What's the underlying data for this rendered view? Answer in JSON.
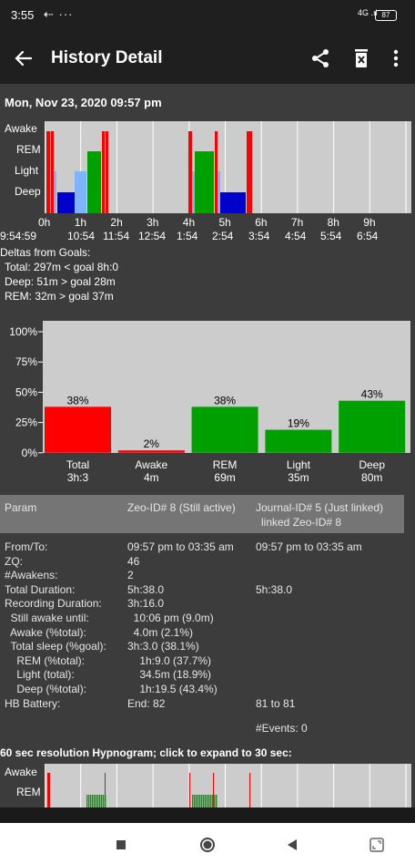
{
  "status": {
    "time": "3:55",
    "notif": "⇠ ···",
    "signal": "4G .ıl",
    "battery": "87"
  },
  "appbar": {
    "title": "History Detail"
  },
  "date": "Mon, Nov 23, 2020 09:57 pm",
  "hypnogram": {
    "stage_labels": [
      "Awake",
      "REM",
      "Light",
      "Deep"
    ],
    "hour_labels": [
      "0h",
      "1h",
      "2h",
      "3h",
      "4h",
      "5h",
      "6h",
      "7h",
      "8h",
      "9h"
    ],
    "time_labels": [
      "9:54:59",
      "10:54",
      "11:54",
      "12:54",
      "1:54",
      "2:54",
      "3:54",
      "4:54",
      "5:54",
      "6:54"
    ],
    "colors": {
      "awake": "#ff0000",
      "rem": "#00a000",
      "light": "#7fb2ff",
      "deep": "#0000cc"
    }
  },
  "deltas": {
    "title": "Deltas from Goals:",
    "lines": [
      "Total: 297m < goal 8h:0",
      "Deep:  51m > goal 28m",
      "REM:  32m > goal 37m"
    ]
  },
  "chart_data": {
    "type": "bar",
    "categories": [
      "Total",
      "Awake",
      "REM",
      "Light",
      "Deep"
    ],
    "sublabels": [
      "3h:3",
      "4m",
      "69m",
      "35m",
      "80m"
    ],
    "values": [
      38,
      2,
      38,
      19,
      43
    ],
    "value_labels": [
      "38%",
      "2%",
      "38%",
      "19%",
      "43%"
    ],
    "colors": [
      "#ff0000",
      "#ff0000",
      "#00a000",
      "#00a000",
      "#00a000"
    ],
    "yticks": [
      "100%",
      "75%",
      "50%",
      "25%",
      "0%"
    ],
    "ylim": [
      0,
      100
    ]
  },
  "params": {
    "headers": [
      "Param",
      "Zeo-ID# 8 (Still active)",
      "Journal-ID# 5 (Just linked)",
      "linked Zeo-ID# 8"
    ],
    "rows": [
      {
        "label": "From/To:",
        "v1": "09:57 pm to 03:35 am",
        "v2": "09:57 pm to 03:35 am"
      },
      {
        "label": "ZQ:",
        "v1": "46",
        "v2": ""
      },
      {
        "label": "#Awakens:",
        "v1": "2",
        "v2": ""
      },
      {
        "label": "Total Duration:",
        "v1": "5h:38.0",
        "v2": "5h:38.0"
      },
      {
        "label": "Recording Duration:",
        "v1": "3h:16.0",
        "v2": ""
      },
      {
        "label": "  Still awake until:",
        "v1": "  10:06 pm (9.0m)",
        "v2": ""
      },
      {
        "label": "  Awake (%total):",
        "v1": "  4.0m (2.1%)",
        "v2": ""
      },
      {
        "label": "  Total sleep (%goal):",
        "v1": "3h:3.0 (38.1%)",
        "v2": ""
      },
      {
        "label": "    REM (%total):",
        "v1": "    1h:9.0 (37.7%)",
        "v2": ""
      },
      {
        "label": "    Light (total):",
        "v1": "    34.5m (18.9%)",
        "v2": ""
      },
      {
        "label": "    Deep (%total):",
        "v1": "    1h:19.5 (43.4%)",
        "v2": ""
      },
      {
        "label": "HB Battery:",
        "v1": "End: 82",
        "v2": "81 to 81"
      }
    ],
    "events": "#Events: 0"
  },
  "hyp60": {
    "title": "60 sec resolution Hypnogram; click to expand to 30 sec:",
    "stage_labels": [
      "Awake",
      "REM"
    ]
  },
  "nav": {
    "recents": "recents-icon",
    "home": "home-icon",
    "back": "back-icon",
    "rotate": "rotate-icon"
  }
}
